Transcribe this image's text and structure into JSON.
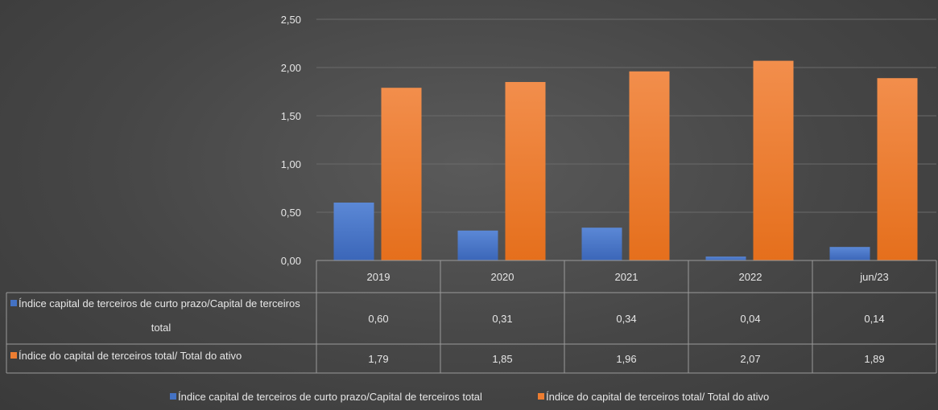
{
  "chart_data": {
    "type": "bar",
    "categories": [
      "2019",
      "2020",
      "2021",
      "2022",
      "jun/23"
    ],
    "series": [
      {
        "name": "Índice capital de terceiros de  curto prazo/Capital de terceiros total",
        "name_lines": [
          "Índice capital de terceiros de  curto prazo/Capital de terceiros",
          "total"
        ],
        "values": [
          0.6,
          0.31,
          0.34,
          0.04,
          0.14
        ],
        "labels": [
          "0,60",
          "0,31",
          "0,34",
          "0,04",
          "0,14"
        ],
        "color": "#4472c4"
      },
      {
        "name": "Índice do capital de terceiros total/ Total do ativo",
        "values": [
          1.79,
          1.85,
          1.96,
          2.07,
          1.89
        ],
        "labels": [
          "1,79",
          "1,85",
          "1,96",
          "2,07",
          "1,89"
        ],
        "color": "#ed7d31"
      }
    ],
    "ylim": [
      0,
      2.5
    ],
    "yticks": [
      0,
      0.5,
      1.0,
      1.5,
      2.0,
      2.5
    ],
    "ytick_labels": [
      "0,00",
      "0,50",
      "1,00",
      "1,50",
      "2,00",
      "2,50"
    ],
    "grid": true,
    "data_table": true,
    "legend_position": "bottom"
  }
}
